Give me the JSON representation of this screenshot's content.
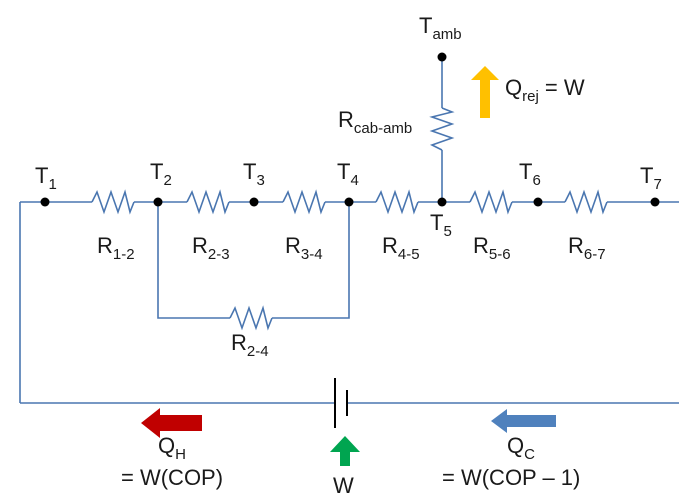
{
  "colors": {
    "wire": "#4a76b0",
    "node": "#000000",
    "arrow_qh": "#c00000",
    "arrow_qc": "#4f81bd",
    "arrow_w": "#00a550",
    "arrow_qrej": "#ffc000"
  },
  "nodes": {
    "t1": {
      "main": "T",
      "sub": "1"
    },
    "t2": {
      "main": "T",
      "sub": "2"
    },
    "t3": {
      "main": "T",
      "sub": "3"
    },
    "t4": {
      "main": "T",
      "sub": "4"
    },
    "t5": {
      "main": "T",
      "sub": "5"
    },
    "t6": {
      "main": "T",
      "sub": "6"
    },
    "t7": {
      "main": "T",
      "sub": "7"
    },
    "tamb": {
      "main": "T",
      "sub": "amb"
    }
  },
  "resistors": {
    "r12": {
      "main": "R",
      "sub": "1-2"
    },
    "r23": {
      "main": "R",
      "sub": "2-3"
    },
    "r34": {
      "main": "R",
      "sub": "3-4"
    },
    "r45": {
      "main": "R",
      "sub": "4-5"
    },
    "r56": {
      "main": "R",
      "sub": "5-6"
    },
    "r67": {
      "main": "R",
      "sub": "6-7"
    },
    "r24": {
      "main": "R",
      "sub": "2-4"
    },
    "rcab": {
      "main": "R",
      "sub": "cab-amb"
    }
  },
  "flows": {
    "qrej": {
      "main": "Q",
      "sub": "rej",
      "eq": " = W"
    },
    "qh": {
      "main": "Q",
      "sub": "H",
      "eq": "= W(COP)"
    },
    "qc": {
      "main": "Q",
      "sub": "C",
      "eq": "= W(COP – 1)"
    },
    "w": {
      "label": "W"
    }
  }
}
